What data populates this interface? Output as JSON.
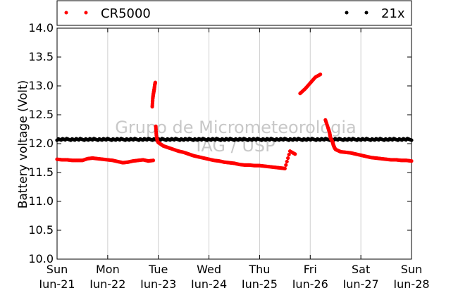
{
  "chart_data": {
    "type": "scatter",
    "ylabel": "Battery voltage (Volt)",
    "xlabel": "",
    "ylim": [
      10.0,
      14.0
    ],
    "xlim": [
      0,
      7
    ],
    "y_ticks": [
      "10.0",
      "10.5",
      "11.0",
      "11.5",
      "12.0",
      "12.5",
      "13.0",
      "13.5",
      "14.0"
    ],
    "x_ticks": [
      {
        "day": "Sun",
        "date": "Jun-21"
      },
      {
        "day": "Mon",
        "date": "Jun-22"
      },
      {
        "day": "Tue",
        "date": "Jun-23"
      },
      {
        "day": "Wed",
        "date": "Jun-24"
      },
      {
        "day": "Thu",
        "date": "Jun-25"
      },
      {
        "day": "Fri",
        "date": "Jun-26"
      },
      {
        "day": "Sat",
        "date": "Jun-27"
      },
      {
        "day": "Sun",
        "date": "Jun-28"
      }
    ],
    "grid": "vertical",
    "legend": [
      {
        "name": "CR5000",
        "color": "#ff0000",
        "position": "top-left"
      },
      {
        "name": "21x",
        "color": "#000000",
        "position": "top-right"
      }
    ],
    "watermark": [
      "Grupo de Micrometeorologia",
      "IAG / USP"
    ],
    "series": [
      {
        "name": "CR5000",
        "color": "#ff0000",
        "x": [
          0.0,
          0.1,
          0.2,
          0.3,
          0.4,
          0.5,
          0.6,
          0.7,
          0.8,
          0.9,
          1.0,
          1.1,
          1.2,
          1.3,
          1.4,
          1.5,
          1.6,
          1.7,
          1.8,
          1.9,
          1.88,
          1.89,
          1.9,
          1.91,
          1.92,
          1.93,
          1.94,
          1.95,
          1.96,
          1.98,
          2.0,
          2.05,
          2.1,
          2.2,
          2.3,
          2.4,
          2.5,
          2.6,
          2.7,
          2.8,
          2.9,
          3.0,
          3.1,
          3.2,
          3.3,
          3.4,
          3.5,
          3.6,
          3.7,
          3.8,
          3.9,
          4.0,
          4.1,
          4.2,
          4.3,
          4.4,
          4.5,
          4.6,
          4.7,
          4.8,
          4.9,
          5.0,
          5.1,
          5.2,
          5.3,
          5.35,
          5.38,
          5.39,
          5.4,
          5.41,
          5.42,
          5.43,
          5.44,
          5.45,
          5.46,
          5.47,
          5.48,
          5.5,
          5.55,
          5.6,
          5.7,
          5.8,
          5.9,
          6.0,
          6.1,
          6.2,
          6.3,
          6.4,
          6.5,
          6.6,
          6.7,
          6.8,
          6.9,
          7.0
        ],
        "y": [
          11.73,
          11.72,
          11.72,
          11.71,
          11.71,
          11.71,
          11.74,
          11.75,
          11.74,
          11.73,
          11.72,
          11.71,
          11.69,
          11.67,
          11.68,
          11.7,
          11.71,
          11.72,
          11.7,
          11.71,
          12.64,
          12.78,
          12.85,
          12.9,
          12.95,
          13.02,
          13.06,
          12.3,
          12.15,
          12.05,
          12.02,
          11.99,
          11.96,
          11.93,
          11.9,
          11.87,
          11.85,
          11.82,
          11.79,
          11.77,
          11.75,
          11.73,
          11.71,
          11.7,
          11.68,
          11.67,
          11.66,
          11.64,
          11.63,
          11.63,
          11.62,
          11.62,
          11.61,
          11.6,
          11.59,
          11.58,
          11.57,
          11.87,
          11.82,
          12.87,
          12.95,
          13.05,
          13.15,
          13.2,
          12.41,
          12.28,
          12.2,
          12.15,
          12.1,
          12.08,
          12.07,
          12.05,
          12.03,
          12.0,
          11.97,
          11.95,
          11.93,
          11.9,
          11.88,
          11.86,
          11.85,
          11.84,
          11.82,
          11.8,
          11.78,
          11.76,
          11.75,
          11.74,
          11.73,
          11.72,
          11.72,
          11.71,
          11.71,
          11.7
        ]
      },
      {
        "name": "21x",
        "color": "#000000",
        "x_range": [
          0,
          7
        ],
        "y": [
          12.06,
          12.09
        ],
        "density": "continuous"
      }
    ]
  }
}
